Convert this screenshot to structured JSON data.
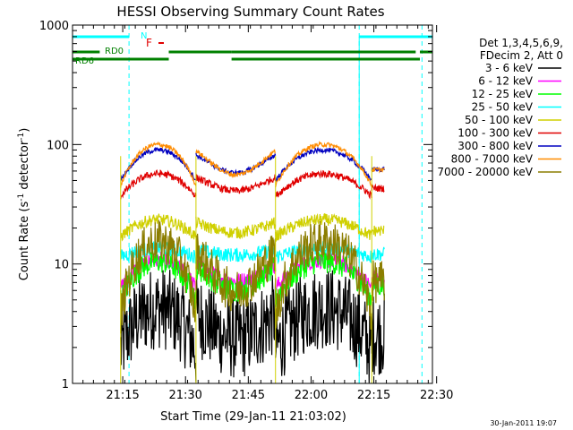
{
  "chart_data": {
    "type": "line",
    "title": "HESSI Observing Summary Count Rates",
    "xlabel": "Start Time (29-Jan-11 21:03:02)",
    "ylabel_main": "Count Rate (s",
    "ylabel_sup1": "-1",
    "ylabel_mid": " detector",
    "ylabel_sup2": "-1",
    "ylabel_end": ")",
    "x_range_min": [
      0,
      86
    ],
    "y_range": [
      1,
      1000
    ],
    "y_scale": "log",
    "x_ticks": [
      {
        "value": 12,
        "label": "21:15"
      },
      {
        "value": 27,
        "label": "21:30"
      },
      {
        "value": 42,
        "label": "21:45"
      },
      {
        "value": 57,
        "label": "22:00"
      },
      {
        "value": 72,
        "label": "22:15"
      },
      {
        "value": 87,
        "label": "22:30"
      }
    ],
    "y_ticks": [
      {
        "value": 1,
        "label": "1"
      },
      {
        "value": 10,
        "label": "10"
      },
      {
        "value": 100,
        "label": "100"
      },
      {
        "value": 1000,
        "label": "1000"
      }
    ],
    "legend_header": [
      "Det 1,3,4,5,6,9,",
      "FDecim 2, Att 0"
    ],
    "legend": [
      {
        "label": "3 - 6 keV",
        "color": "#000000"
      },
      {
        "label": "6 - 12 keV",
        "color": "#ff00ff"
      },
      {
        "label": "12 - 25 keV",
        "color": "#00ff00"
      },
      {
        "label": "25 - 50 keV",
        "color": "#00ffff"
      },
      {
        "label": "50 - 100 keV",
        "color": "#d0d000"
      },
      {
        "label": "100 - 300 keV",
        "color": "#e00000"
      },
      {
        "label": "300 - 800 keV",
        "color": "#0000c0"
      },
      {
        "label": "800 - 7000 keV",
        "color": "#ff8c00"
      },
      {
        "label": "7000 - 20000 keV",
        "color": "#8b7d00"
      }
    ],
    "segments": [
      [
        11.5,
        29.5
      ],
      [
        29.5,
        48.5
      ],
      [
        48.5,
        71.5
      ],
      [
        71.5,
        74.5
      ]
    ],
    "series_levels": [
      {
        "name": "3 - 6 keV",
        "color": "#000000",
        "base": 1.9,
        "amp": 2.4,
        "noise": 0.35
      },
      {
        "name": "6 - 12 keV",
        "color": "#ff00ff",
        "base": 6.3,
        "amp": 4.5,
        "noise": 0.07
      },
      {
        "name": "12 - 25 keV",
        "color": "#00ff00",
        "base": 5.0,
        "amp": 5.5,
        "noise": 0.1
      },
      {
        "name": "25 - 50 keV",
        "color": "#00ffff",
        "base": 11.5,
        "amp": 2.0,
        "noise": 0.06
      },
      {
        "name": "50 - 100 keV",
        "color": "#d0d000",
        "base": 17,
        "amp": 6.5,
        "noise": 0.05
      },
      {
        "name": "100 - 300 keV",
        "color": "#e00000",
        "base": 37,
        "amp": 20,
        "noise": 0.03
      },
      {
        "name": "300 - 800 keV",
        "color": "#0000c0",
        "base": 50,
        "amp": 40,
        "noise": 0.02
      },
      {
        "name": "800 - 7000 keV",
        "color": "#ff8c00",
        "base": 45,
        "amp": 55,
        "noise": 0.02
      },
      {
        "name": "7000 - 20000 keV",
        "color": "#8b7d00",
        "base": 3.5,
        "amp": 12,
        "noise": 0.18
      }
    ],
    "annotations": {
      "N": {
        "label": "N",
        "color": "#00ffff"
      },
      "F": {
        "label": "F",
        "color": "#e00000"
      },
      "RD0": {
        "label": "RD0",
        "color": "#008000"
      },
      "RD6": {
        "label": "RD6",
        "color": "#008000"
      }
    },
    "night_bars": [
      [
        -3,
        13.5
      ],
      [
        68.5,
        86
      ]
    ],
    "rd0_bars": [
      [
        -3,
        6.5
      ],
      [
        23,
        38
      ],
      [
        38,
        82
      ],
      [
        83,
        92
      ]
    ],
    "rd6_bars": [
      [
        -3,
        23
      ],
      [
        38,
        83
      ]
    ],
    "attenuator_dashes_min": [
      13.5,
      68.5,
      83.5
    ]
  },
  "footer": {
    "date": "30-Jan-2011 19:07"
  }
}
